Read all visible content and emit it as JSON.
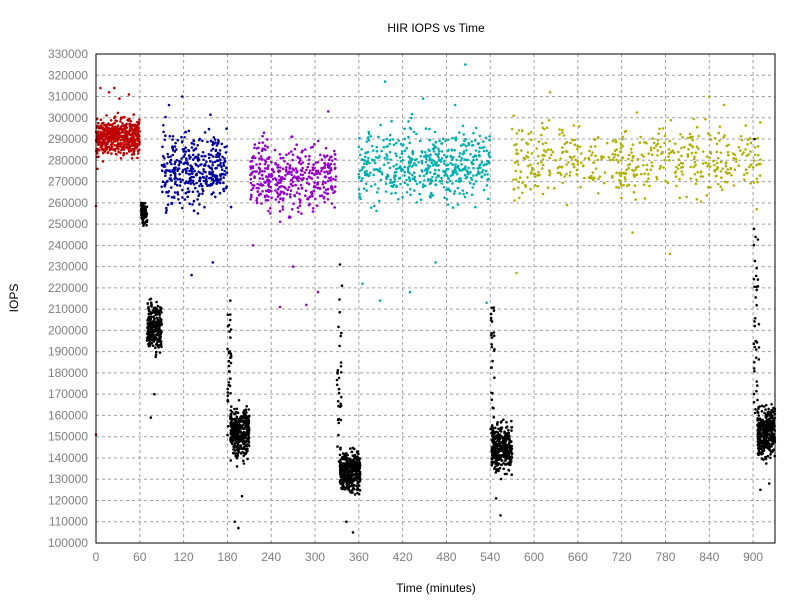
{
  "chart_data": {
    "type": "scatter",
    "title": "HIR IOPS vs Time",
    "xlabel": "Time (minutes)",
    "ylabel": "IOPS",
    "xlim": [
      0,
      930
    ],
    "ylim": [
      100000,
      330000
    ],
    "xticks": [
      0,
      60,
      120,
      180,
      240,
      300,
      360,
      420,
      480,
      540,
      600,
      660,
      720,
      780,
      840,
      900
    ],
    "yticks": [
      100000,
      110000,
      120000,
      130000,
      140000,
      150000,
      160000,
      170000,
      180000,
      190000,
      200000,
      210000,
      220000,
      230000,
      240000,
      250000,
      260000,
      270000,
      280000,
      290000,
      300000,
      310000,
      320000,
      330000
    ],
    "grid": true,
    "legend": "none",
    "series": [
      {
        "color": "#c00000",
        "clusters": [
          {
            "x": [
              0,
              60
            ],
            "y_center": 291000,
            "y_spread": 9000,
            "count": 520
          }
        ],
        "points": [
          [
            0,
            258500
          ],
          [
            0,
            151000
          ],
          [
            2,
            276000
          ],
          [
            6,
            314000
          ],
          [
            18,
            312000
          ],
          [
            25,
            314000
          ],
          [
            32,
            309000
          ],
          [
            45,
            311000
          ]
        ]
      },
      {
        "color": "#00009c",
        "clusters": [
          {
            "x": [
              90,
              180
            ],
            "y_center": 276000,
            "y_spread": 18000,
            "count": 380
          }
        ],
        "points": [
          [
            118,
            310000
          ],
          [
            100,
            306000
          ],
          [
            160,
            232000
          ],
          [
            131,
            226000
          ],
          [
            185,
            258000
          ]
        ]
      },
      {
        "color": "#9400c8",
        "clusters": [
          {
            "x": [
              210,
              330
            ],
            "y_center": 272000,
            "y_spread": 18000,
            "count": 420
          }
        ],
        "points": [
          [
            252,
            211000
          ],
          [
            288,
            212000
          ],
          [
            318,
            303000
          ],
          [
            230,
            293000
          ],
          [
            215,
            240000
          ],
          [
            270,
            230000
          ],
          [
            304,
            218000
          ]
        ]
      },
      {
        "color": "#00b0b0",
        "clusters": [
          {
            "x": [
              360,
              540
            ],
            "y_center": 278000,
            "y_spread": 18000,
            "count": 520
          }
        ],
        "points": [
          [
            396,
            317000
          ],
          [
            506,
            325000
          ],
          [
            365,
            222000
          ],
          [
            389,
            214000
          ],
          [
            430,
            218000
          ],
          [
            465,
            232000
          ],
          [
            535,
            213000
          ],
          [
            492,
            306000
          ],
          [
            448,
            309000
          ]
        ]
      },
      {
        "color": "#b0b000",
        "clusters": [
          {
            "x": [
              570,
              910
            ],
            "y_center": 280000,
            "y_spread": 18000,
            "count": 480
          }
        ],
        "points": [
          [
            576,
            227000
          ],
          [
            622,
            312000
          ],
          [
            662,
            296000
          ],
          [
            735,
            246000
          ],
          [
            786,
            236000
          ],
          [
            840,
            310000
          ],
          [
            860,
            306000
          ],
          [
            572,
            301000
          ],
          [
            905,
            257000
          ]
        ]
      },
      {
        "color": "#000000",
        "clusters": [
          {
            "x": [
              62,
              70
            ],
            "y_center": 255000,
            "y_spread": 5000,
            "count": 90
          },
          {
            "x": [
              70,
              90
            ],
            "y_center": 202000,
            "y_spread": 12000,
            "count": 250
          },
          {
            "x": [
              180,
              186
            ],
            "y_center": 180000,
            "y_spread": 30000,
            "count": 40
          },
          {
            "x": [
              184,
              210
            ],
            "y_center": 152000,
            "y_spread": 12000,
            "count": 340
          },
          {
            "x": [
              330,
              336
            ],
            "y_center": 180000,
            "y_spread": 45000,
            "count": 30
          },
          {
            "x": [
              334,
              362
            ],
            "y_center": 134000,
            "y_spread": 11000,
            "count": 360
          },
          {
            "x": [
              540,
              546
            ],
            "y_center": 185000,
            "y_spread": 40000,
            "count": 30
          },
          {
            "x": [
              542,
              570
            ],
            "y_center": 145000,
            "y_spread": 12000,
            "count": 340
          },
          {
            "x": [
              901,
              908
            ],
            "y_center": 200000,
            "y_spread": 50000,
            "count": 40
          },
          {
            "x": [
              906,
              930
            ],
            "y_center": 152000,
            "y_spread": 12000,
            "count": 340
          }
        ],
        "points": [
          [
            75,
            159000
          ],
          [
            80,
            170000
          ],
          [
            195,
            107000
          ],
          [
            190,
            110000
          ],
          [
            200,
            122000
          ],
          [
            352,
            105000
          ],
          [
            343,
            110000
          ],
          [
            554,
            113000
          ],
          [
            548,
            121000
          ],
          [
            902,
            290000
          ],
          [
            910,
            125000
          ],
          [
            922,
            128000
          ],
          [
            62,
            260000
          ],
          [
            334,
            231000
          ],
          [
            337,
            221000
          ],
          [
            184,
            214000
          ]
        ]
      }
    ]
  }
}
